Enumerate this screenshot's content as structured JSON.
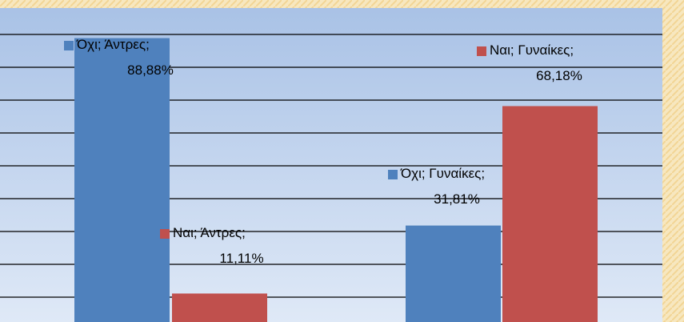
{
  "chart_data": {
    "type": "bar",
    "series": [
      {
        "color": "#4f81bd",
        "values": [
          88.88,
          31.81
        ],
        "value_labels": [
          "Όχι; Άντρες; 88,88%",
          "Όχι; Γυναίκες; 31,81%"
        ]
      },
      {
        "color": "#c0504d",
        "values": [
          11.11,
          68.18
        ],
        "value_labels": [
          "Ναι; Άντρες; 11,11%",
          "Ναι; Γυναίκες; 68,18%"
        ]
      }
    ],
    "ylim": [
      0,
      100
    ],
    "yticks": [
      0,
      10,
      20,
      30,
      40,
      50,
      60,
      70,
      80,
      90,
      100
    ],
    "grid": true
  }
}
